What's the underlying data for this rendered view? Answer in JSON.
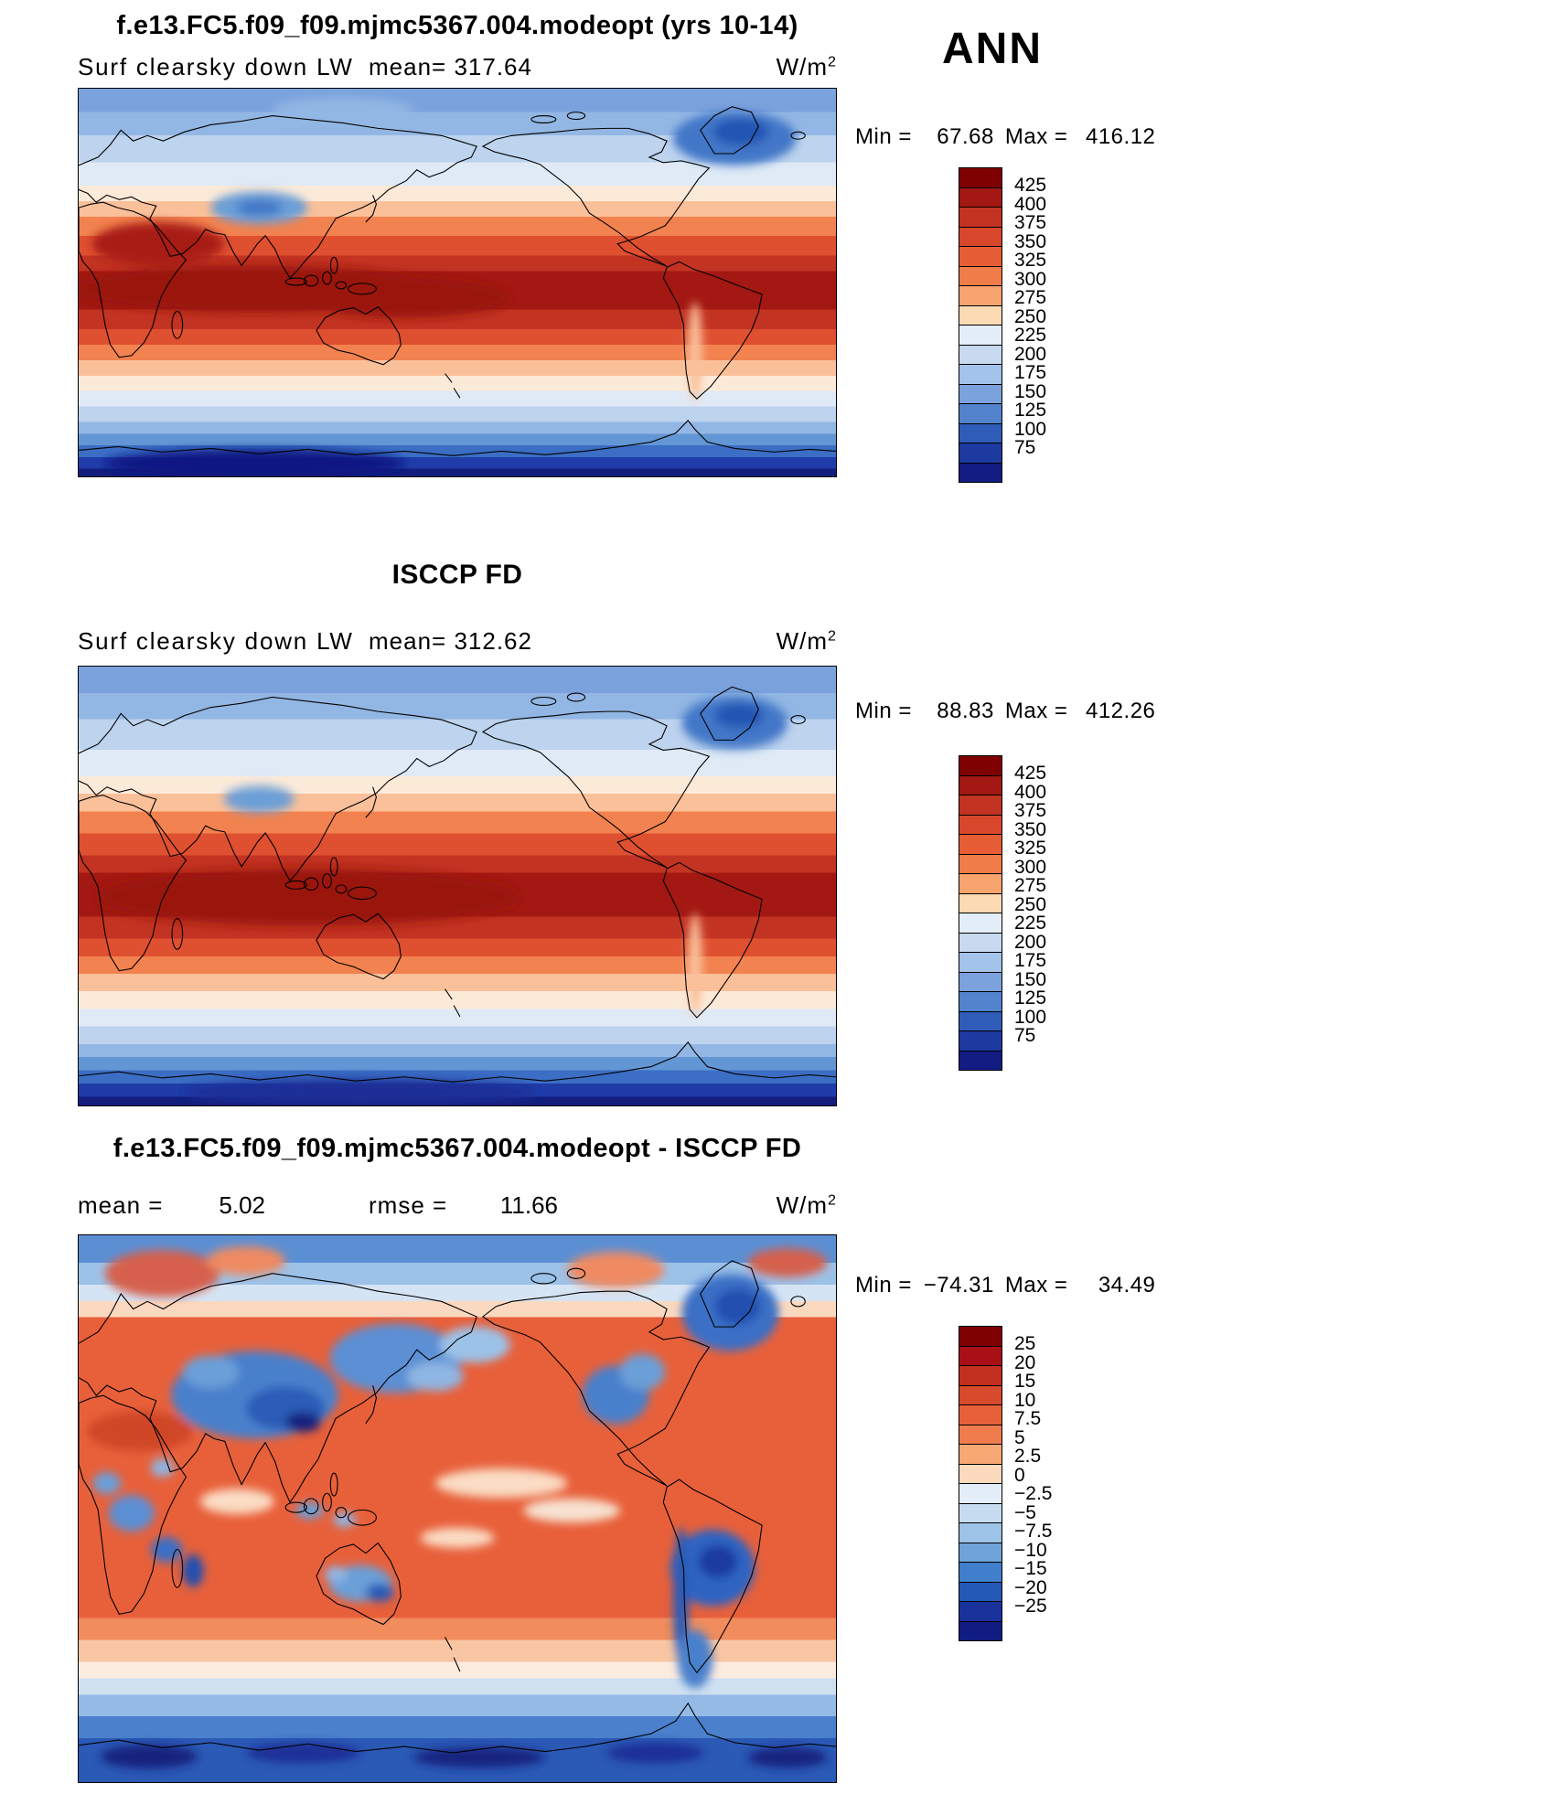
{
  "header": {
    "ann": "ANN"
  },
  "panels": [
    {
      "title": "f.e13.FC5.f09_f09.mjmc5367.004.modeopt (yrs 10-14)",
      "field": "Surf clearsky down LW",
      "mean_text": "mean= 317.64",
      "units": "W/m",
      "units_exp": "2",
      "min_label": "Min =",
      "min_value": "67.68",
      "max_label": "Max =",
      "max_value": "416.12",
      "colorbar": {
        "labels": [
          "425",
          "400",
          "375",
          "350",
          "325",
          "300",
          "275",
          "250",
          "225",
          "200",
          "175",
          "150",
          "125",
          "100",
          "75"
        ],
        "colors": [
          "#7f0000",
          "#a31812",
          "#c23322",
          "#d8472b",
          "#e75d35",
          "#f07c49",
          "#f8a46e",
          "#fbdab4",
          "#e4eef8",
          "#c7daf0",
          "#a3c3ea",
          "#7ba2dc",
          "#5283cc",
          "#2f5cb8",
          "#1c3aa0",
          "#121c82"
        ]
      }
    },
    {
      "title": "ISCCP FD",
      "field": "Surf clearsky down LW",
      "mean_text": "mean= 312.62",
      "units": "W/m",
      "units_exp": "2",
      "min_label": "Min =",
      "min_value": "88.83",
      "max_label": "Max =",
      "max_value": "412.26",
      "colorbar": {
        "labels": [
          "425",
          "400",
          "375",
          "350",
          "325",
          "300",
          "275",
          "250",
          "225",
          "200",
          "175",
          "150",
          "125",
          "100",
          "75"
        ],
        "colors": [
          "#7f0000",
          "#a31812",
          "#c23322",
          "#d8472b",
          "#e75d35",
          "#f07c49",
          "#f8a46e",
          "#fbdab4",
          "#e4eef8",
          "#c7daf0",
          "#a3c3ea",
          "#7ba2dc",
          "#5283cc",
          "#2f5cb8",
          "#1c3aa0",
          "#121c82"
        ]
      }
    },
    {
      "title": "f.e13.FC5.f09_f09.mjmc5367.004.modeopt - ISCCP FD",
      "mean_label": "mean =",
      "mean_value": "5.02",
      "rmse_label": "rmse =",
      "rmse_value": "11.66",
      "units": "W/m",
      "units_exp": "2",
      "min_label": "Min =",
      "min_value": "−74.31",
      "max_label": "Max =",
      "max_value": "34.49",
      "colorbar": {
        "labels": [
          "25",
          "20",
          "15",
          "10",
          "7.5",
          "5",
          "2.5",
          "0",
          "−2.5",
          "−5",
          "−7.5",
          "−10",
          "−15",
          "−20",
          "−25"
        ],
        "colors": [
          "#7f0000",
          "#a81016",
          "#c32f1e",
          "#d84a2c",
          "#e8603a",
          "#f07c4e",
          "#f8a973",
          "#fcdabd",
          "#e4eef8",
          "#c6dbef",
          "#9dc3e6",
          "#6fa3da",
          "#3f7fcb",
          "#2459b6",
          "#1a339c",
          "#101c82"
        ]
      }
    }
  ],
  "chart_data": [
    {
      "type": "heatmap",
      "subtype": "global-latlon-filled-contour-map",
      "title": "f.e13.FC5.f09_f09.mjmc5367.004.modeopt (yrs 10-14)",
      "season": "ANN",
      "variable": "Surf clearsky down LW",
      "units": "W/m2",
      "mean": 317.64,
      "min": 67.68,
      "max": 416.12,
      "contour_levels": [
        75,
        100,
        125,
        150,
        175,
        200,
        225,
        250,
        275,
        300,
        325,
        350,
        375,
        400,
        425
      ],
      "palette": "dark-red (high, tropics) to dark-navy-blue (low, poles)",
      "legend_position": "right",
      "notes": "Zonally banded field: ~375-425 W/m2 in deep tropics, decreasing poleward; <100 W/m2 over interior Antarctica; local lows over Tibetan Plateau and Greenland"
    },
    {
      "type": "heatmap",
      "subtype": "global-latlon-filled-contour-map",
      "title": "ISCCP FD",
      "season": "ANN",
      "variable": "Surf clearsky down LW",
      "units": "W/m2",
      "mean": 312.62,
      "min": 88.83,
      "max": 412.26,
      "contour_levels": [
        75,
        100,
        125,
        150,
        175,
        200,
        225,
        250,
        275,
        300,
        325,
        350,
        375,
        400,
        425
      ],
      "palette": "dark-red (high, tropics) to dark-navy-blue (low, poles)",
      "legend_position": "right",
      "notes": "Observational reference field with same zonal structure as model panel"
    },
    {
      "type": "heatmap",
      "subtype": "difference-map",
      "title": "f.e13.FC5.f09_f09.mjmc5367.004.modeopt - ISCCP FD",
      "season": "ANN",
      "units": "W/m2",
      "mean": 5.02,
      "rmse": 11.66,
      "min": -74.31,
      "max": 34.49,
      "contour_levels": [
        -25,
        -20,
        -15,
        -10,
        -7.5,
        -5,
        -2.5,
        0,
        2.5,
        5,
        7.5,
        10,
        15,
        20,
        25
      ],
      "palette": "red positive bias, blue negative bias",
      "legend_position": "right",
      "notes": "Mostly positive (+2.5 to +15) over oceans and low latitudes; negative (blue) over central Asia/Himalayas, Greenland, Amazon/Andes, parts of Africa and Australia, and around Antarctica"
    }
  ]
}
